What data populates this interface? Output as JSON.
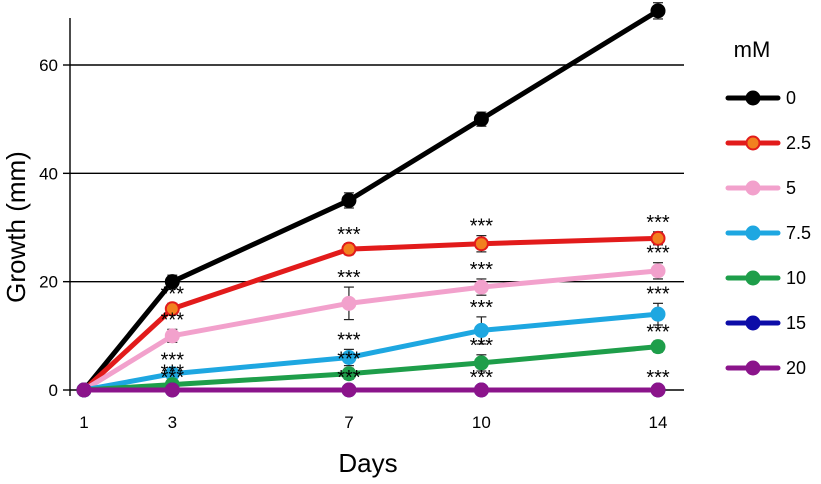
{
  "chart_data": {
    "type": "line",
    "xlabel": "Days",
    "ylabel": "Growth (mm)",
    "x": [
      1,
      3,
      7,
      10,
      14
    ],
    "x_tick_labels": [
      "1",
      "3",
      "7",
      "10",
      "14"
    ],
    "ylim": [
      0,
      70
    ],
    "y_ticks": [
      0,
      20,
      40,
      60
    ],
    "y_tick_labels": [
      "0",
      "20",
      "40",
      "60"
    ],
    "grid": "horizontal",
    "legend_title": "mM",
    "legend_position": "right",
    "significance_marker": "***",
    "series": [
      {
        "name": "0",
        "color": "#000000",
        "values": [
          0,
          20,
          35,
          50,
          70
        ],
        "errors": [
          0,
          1.2,
          1.4,
          1.3,
          1.5
        ],
        "significant": [
          false,
          false,
          false,
          false,
          false
        ]
      },
      {
        "name": "2.5",
        "color": "#e21b1b",
        "marker_fill": "#f2801f",
        "values": [
          0,
          15,
          26,
          27,
          28
        ],
        "errors": [
          0,
          1.0,
          1.0,
          1.5,
          1.2
        ],
        "significant": [
          false,
          true,
          true,
          true,
          true
        ]
      },
      {
        "name": "5",
        "color": "#f2a1cc",
        "values": [
          0,
          10,
          16,
          19,
          22
        ],
        "errors": [
          0,
          1.2,
          3.0,
          1.5,
          1.5
        ],
        "significant": [
          false,
          true,
          true,
          true,
          true
        ]
      },
      {
        "name": "7.5",
        "color": "#1ea7e1",
        "values": [
          0,
          3,
          6,
          11,
          14
        ],
        "errors": [
          0,
          0.8,
          1.5,
          2.5,
          2.0
        ],
        "significant": [
          false,
          true,
          true,
          true,
          true
        ]
      },
      {
        "name": "10",
        "color": "#1e9e4a",
        "values": [
          0,
          1,
          3,
          5,
          8
        ],
        "errors": [
          0,
          0.5,
          1.0,
          1.5,
          1.0
        ],
        "significant": [
          false,
          true,
          true,
          true,
          true
        ]
      },
      {
        "name": "15",
        "color": "#0c0ca8",
        "values": [
          0,
          0,
          0,
          0,
          0
        ],
        "errors": [
          0,
          0,
          0,
          0,
          0
        ],
        "significant": [
          false,
          false,
          false,
          false,
          false
        ]
      },
      {
        "name": "20",
        "color": "#8b148b",
        "values": [
          0,
          0,
          0,
          0,
          0
        ],
        "errors": [
          0,
          0,
          0,
          0,
          0
        ],
        "significant": [
          false,
          true,
          true,
          true,
          true
        ]
      }
    ]
  }
}
